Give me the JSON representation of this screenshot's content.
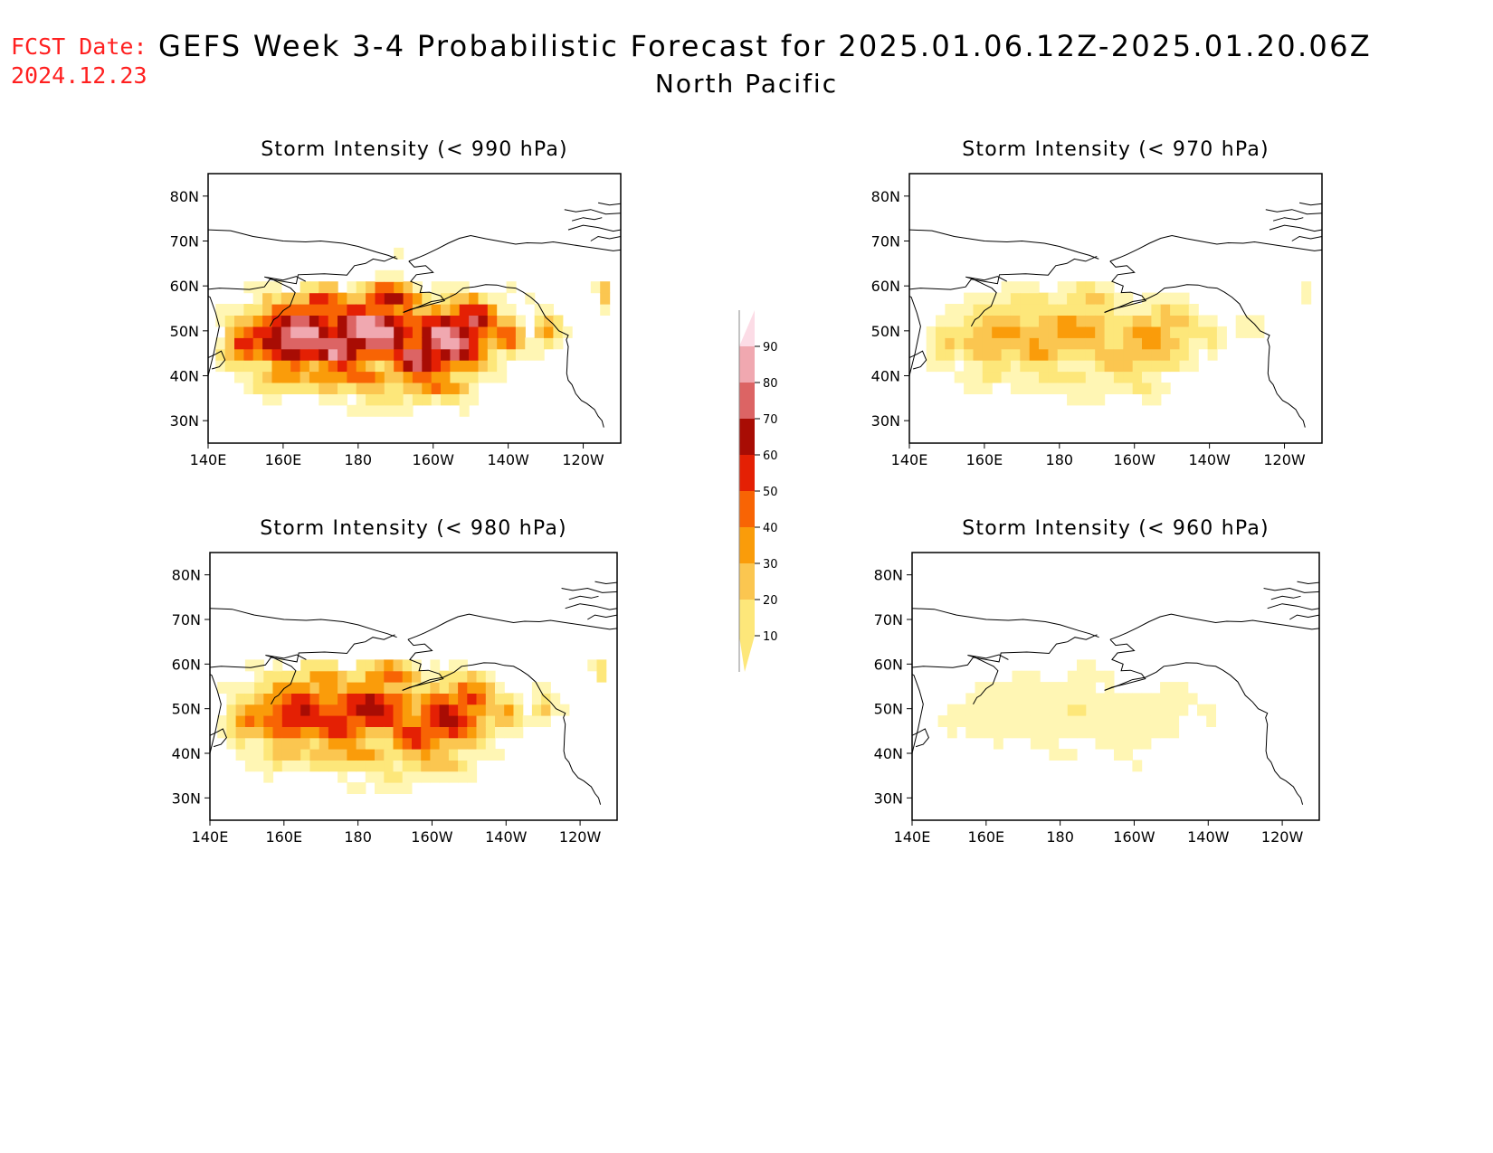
{
  "forecast_date": {
    "label": "FCST Date:",
    "value": "2024.12.23"
  },
  "title": "GEFS Week 3-4 Probabilistic Forecast for 2025.01.06.12Z-2025.01.20.06Z",
  "subtitle": "North Pacific",
  "colors": {
    "levels": [
      10,
      20,
      30,
      40,
      50,
      60,
      70,
      80,
      90
    ],
    "bins": [
      "#fff6b4",
      "#fde77a",
      "#fbc650",
      "#fa9c0a",
      "#f86404",
      "#e42004",
      "#a80c04",
      "#dc6464",
      "#f0a8b0",
      "#fcdce6"
    ],
    "coastline": "#000000",
    "frame": "#000000"
  },
  "axes": {
    "lat_ticks": [
      "80N",
      "70N",
      "60N",
      "50N",
      "40N",
      "30N"
    ],
    "lon_ticks": [
      "140E",
      "160E",
      "180",
      "160W",
      "140W",
      "120W"
    ]
  },
  "panels": [
    {
      "id": "p990",
      "title": "Storm Intensity (< 990 hPa)",
      "threshold_hpa": 990,
      "intensity": 1.0
    },
    {
      "id": "p970",
      "title": "Storm Intensity (< 970 hPa)",
      "threshold_hpa": 970,
      "intensity": 0.45
    },
    {
      "id": "p980",
      "title": "Storm Intensity (< 980 hPa)",
      "threshold_hpa": 980,
      "intensity": 0.75
    },
    {
      "id": "p960",
      "title": "Storm Intensity (< 960 hPa)",
      "threshold_hpa": 960,
      "intensity": 0.2
    }
  ],
  "colorbar": {
    "labels": [
      "90",
      "80",
      "70",
      "60",
      "50",
      "40",
      "30",
      "20",
      "10"
    ]
  }
}
